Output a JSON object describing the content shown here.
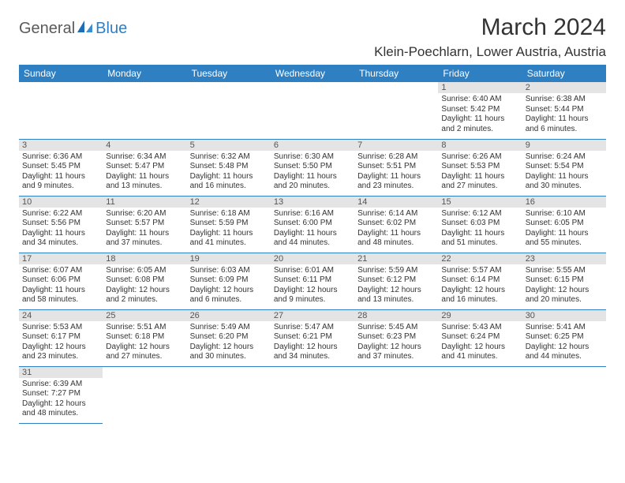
{
  "brand": {
    "part1": "General",
    "part2": "Blue"
  },
  "title": "March 2024",
  "location": "Klein-Poechlarn, Lower Austria, Austria",
  "colors": {
    "header_bg": "#2f7fc3",
    "header_fg": "#ffffff",
    "daynum_bg": "#e4e4e4",
    "cell_border": "#2f7fc3",
    "text": "#333333",
    "logo_gray": "#5a5a5a",
    "logo_blue": "#2f7fc3",
    "background": "#ffffff"
  },
  "typography": {
    "title_fontsize": 30,
    "location_fontsize": 17,
    "header_fontsize": 12,
    "daynum_fontsize": 11,
    "cell_fontsize": 10
  },
  "weekdays": [
    "Sunday",
    "Monday",
    "Tuesday",
    "Wednesday",
    "Thursday",
    "Friday",
    "Saturday"
  ],
  "weeks": [
    [
      {
        "empty": true
      },
      {
        "empty": true
      },
      {
        "empty": true
      },
      {
        "empty": true
      },
      {
        "empty": true
      },
      {
        "day": "1",
        "sunrise": "Sunrise: 6:40 AM",
        "sunset": "Sunset: 5:42 PM",
        "daylight": "Daylight: 11 hours and 2 minutes."
      },
      {
        "day": "2",
        "sunrise": "Sunrise: 6:38 AM",
        "sunset": "Sunset: 5:44 PM",
        "daylight": "Daylight: 11 hours and 6 minutes."
      }
    ],
    [
      {
        "day": "3",
        "sunrise": "Sunrise: 6:36 AM",
        "sunset": "Sunset: 5:45 PM",
        "daylight": "Daylight: 11 hours and 9 minutes."
      },
      {
        "day": "4",
        "sunrise": "Sunrise: 6:34 AM",
        "sunset": "Sunset: 5:47 PM",
        "daylight": "Daylight: 11 hours and 13 minutes."
      },
      {
        "day": "5",
        "sunrise": "Sunrise: 6:32 AM",
        "sunset": "Sunset: 5:48 PM",
        "daylight": "Daylight: 11 hours and 16 minutes."
      },
      {
        "day": "6",
        "sunrise": "Sunrise: 6:30 AM",
        "sunset": "Sunset: 5:50 PM",
        "daylight": "Daylight: 11 hours and 20 minutes."
      },
      {
        "day": "7",
        "sunrise": "Sunrise: 6:28 AM",
        "sunset": "Sunset: 5:51 PM",
        "daylight": "Daylight: 11 hours and 23 minutes."
      },
      {
        "day": "8",
        "sunrise": "Sunrise: 6:26 AM",
        "sunset": "Sunset: 5:53 PM",
        "daylight": "Daylight: 11 hours and 27 minutes."
      },
      {
        "day": "9",
        "sunrise": "Sunrise: 6:24 AM",
        "sunset": "Sunset: 5:54 PM",
        "daylight": "Daylight: 11 hours and 30 minutes."
      }
    ],
    [
      {
        "day": "10",
        "sunrise": "Sunrise: 6:22 AM",
        "sunset": "Sunset: 5:56 PM",
        "daylight": "Daylight: 11 hours and 34 minutes."
      },
      {
        "day": "11",
        "sunrise": "Sunrise: 6:20 AM",
        "sunset": "Sunset: 5:57 PM",
        "daylight": "Daylight: 11 hours and 37 minutes."
      },
      {
        "day": "12",
        "sunrise": "Sunrise: 6:18 AM",
        "sunset": "Sunset: 5:59 PM",
        "daylight": "Daylight: 11 hours and 41 minutes."
      },
      {
        "day": "13",
        "sunrise": "Sunrise: 6:16 AM",
        "sunset": "Sunset: 6:00 PM",
        "daylight": "Daylight: 11 hours and 44 minutes."
      },
      {
        "day": "14",
        "sunrise": "Sunrise: 6:14 AM",
        "sunset": "Sunset: 6:02 PM",
        "daylight": "Daylight: 11 hours and 48 minutes."
      },
      {
        "day": "15",
        "sunrise": "Sunrise: 6:12 AM",
        "sunset": "Sunset: 6:03 PM",
        "daylight": "Daylight: 11 hours and 51 minutes."
      },
      {
        "day": "16",
        "sunrise": "Sunrise: 6:10 AM",
        "sunset": "Sunset: 6:05 PM",
        "daylight": "Daylight: 11 hours and 55 minutes."
      }
    ],
    [
      {
        "day": "17",
        "sunrise": "Sunrise: 6:07 AM",
        "sunset": "Sunset: 6:06 PM",
        "daylight": "Daylight: 11 hours and 58 minutes."
      },
      {
        "day": "18",
        "sunrise": "Sunrise: 6:05 AM",
        "sunset": "Sunset: 6:08 PM",
        "daylight": "Daylight: 12 hours and 2 minutes."
      },
      {
        "day": "19",
        "sunrise": "Sunrise: 6:03 AM",
        "sunset": "Sunset: 6:09 PM",
        "daylight": "Daylight: 12 hours and 6 minutes."
      },
      {
        "day": "20",
        "sunrise": "Sunrise: 6:01 AM",
        "sunset": "Sunset: 6:11 PM",
        "daylight": "Daylight: 12 hours and 9 minutes."
      },
      {
        "day": "21",
        "sunrise": "Sunrise: 5:59 AM",
        "sunset": "Sunset: 6:12 PM",
        "daylight": "Daylight: 12 hours and 13 minutes."
      },
      {
        "day": "22",
        "sunrise": "Sunrise: 5:57 AM",
        "sunset": "Sunset: 6:14 PM",
        "daylight": "Daylight: 12 hours and 16 minutes."
      },
      {
        "day": "23",
        "sunrise": "Sunrise: 5:55 AM",
        "sunset": "Sunset: 6:15 PM",
        "daylight": "Daylight: 12 hours and 20 minutes."
      }
    ],
    [
      {
        "day": "24",
        "sunrise": "Sunrise: 5:53 AM",
        "sunset": "Sunset: 6:17 PM",
        "daylight": "Daylight: 12 hours and 23 minutes."
      },
      {
        "day": "25",
        "sunrise": "Sunrise: 5:51 AM",
        "sunset": "Sunset: 6:18 PM",
        "daylight": "Daylight: 12 hours and 27 minutes."
      },
      {
        "day": "26",
        "sunrise": "Sunrise: 5:49 AM",
        "sunset": "Sunset: 6:20 PM",
        "daylight": "Daylight: 12 hours and 30 minutes."
      },
      {
        "day": "27",
        "sunrise": "Sunrise: 5:47 AM",
        "sunset": "Sunset: 6:21 PM",
        "daylight": "Daylight: 12 hours and 34 minutes."
      },
      {
        "day": "28",
        "sunrise": "Sunrise: 5:45 AM",
        "sunset": "Sunset: 6:23 PM",
        "daylight": "Daylight: 12 hours and 37 minutes."
      },
      {
        "day": "29",
        "sunrise": "Sunrise: 5:43 AM",
        "sunset": "Sunset: 6:24 PM",
        "daylight": "Daylight: 12 hours and 41 minutes."
      },
      {
        "day": "30",
        "sunrise": "Sunrise: 5:41 AM",
        "sunset": "Sunset: 6:25 PM",
        "daylight": "Daylight: 12 hours and 44 minutes."
      }
    ],
    [
      {
        "day": "31",
        "sunrise": "Sunrise: 6:39 AM",
        "sunset": "Sunset: 7:27 PM",
        "daylight": "Daylight: 12 hours and 48 minutes."
      },
      {
        "empty": true
      },
      {
        "empty": true
      },
      {
        "empty": true
      },
      {
        "empty": true
      },
      {
        "empty": true
      },
      {
        "empty": true
      }
    ]
  ]
}
